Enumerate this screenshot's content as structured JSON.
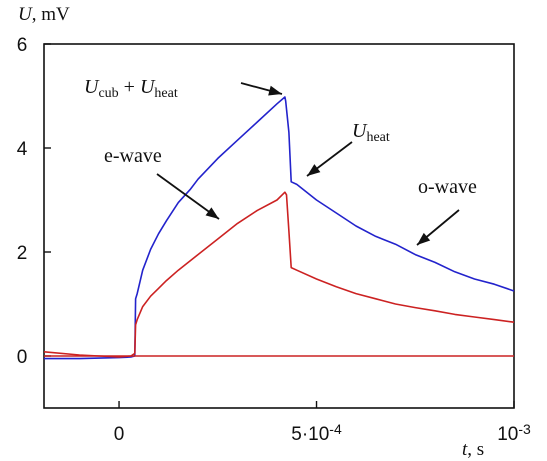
{
  "chart_data": {
    "type": "line",
    "ylabel": {
      "var": "U",
      "unit": ", mV"
    },
    "xlabel": {
      "var": "t",
      "unit": ", s"
    },
    "xlim": [
      -0.00019,
      0.001
    ],
    "ylim": [
      -1.0,
      6.0
    ],
    "x_ticks": [
      {
        "value": 0,
        "label": "0"
      },
      {
        "value": 0.0005,
        "label": "5·10",
        "exp": "-4"
      },
      {
        "value": 0.001,
        "label": "10",
        "exp": "-3"
      }
    ],
    "y_ticks": [
      {
        "value": 0,
        "label": "0"
      },
      {
        "value": 2,
        "label": "2"
      },
      {
        "value": 4,
        "label": "4"
      },
      {
        "value": 6,
        "label": "6"
      }
    ],
    "grid": false,
    "colors": {
      "blue": "#2323cc",
      "red": "#cc2222",
      "axis": "#111111"
    },
    "series": [
      {
        "color": "#2323cc",
        "x": [
          -0.00019,
          -0.0001,
          0,
          3e-05,
          4e-05,
          4.2e-05,
          4.6e-05,
          6e-05,
          8e-05,
          0.0001,
          0.00012,
          0.00015,
          0.00018,
          0.0002,
          0.00025,
          0.0003,
          0.00035,
          0.0004,
          0.00042,
          0.000422,
          0.00043,
          0.000436,
          0.00045,
          0.0005,
          0.00055,
          0.0006,
          0.00065,
          0.0007,
          0.00075,
          0.0008,
          0.00085,
          0.0009,
          0.00095,
          0.001
        ],
        "y": [
          -0.05,
          -0.05,
          -0.03,
          -0.02,
          0.0,
          1.1,
          1.2,
          1.65,
          2.05,
          2.35,
          2.6,
          2.95,
          3.2,
          3.4,
          3.8,
          4.15,
          4.5,
          4.85,
          4.98,
          4.9,
          4.3,
          3.35,
          3.3,
          3.0,
          2.75,
          2.5,
          2.3,
          2.15,
          1.95,
          1.8,
          1.62,
          1.48,
          1.38,
          1.25
        ]
      },
      {
        "color": "#cc2222",
        "x": [
          -0.00019,
          -0.0001,
          0,
          3e-05,
          4e-05,
          4.2e-05,
          4.6e-05,
          6e-05,
          8e-05,
          0.0001,
          0.00012,
          0.00015,
          0.0002,
          0.00025,
          0.0003,
          0.00035,
          0.0004,
          0.00042,
          0.000424,
          0.00043,
          0.000436,
          0.00045,
          0.0005,
          0.00055,
          0.0006,
          0.00065,
          0.0007,
          0.00075,
          0.0008,
          0.00085,
          0.0009,
          0.00095,
          0.001
        ],
        "y": [
          0.08,
          0.02,
          -0.02,
          0.0,
          0.05,
          0.6,
          0.7,
          0.95,
          1.15,
          1.3,
          1.45,
          1.65,
          1.95,
          2.25,
          2.55,
          2.8,
          3.0,
          3.15,
          3.1,
          2.4,
          1.7,
          1.65,
          1.48,
          1.33,
          1.2,
          1.1,
          1.0,
          0.93,
          0.87,
          0.8,
          0.75,
          0.7,
          0.65
        ]
      },
      {
        "color": "#cc2222",
        "x": [
          -0.00019,
          0.001
        ],
        "y": [
          0.0,
          0.0
        ]
      }
    ],
    "annotations": [
      {
        "parts": [
          [
            "U",
            "i"
          ],
          [
            "cub",
            "sub"
          ],
          [
            " + ",
            ""
          ],
          [
            "U",
            "i"
          ],
          [
            "heat",
            "sub"
          ]
        ],
        "tip": [
          0.000415,
          5.0
        ]
      },
      {
        "parts": [
          [
            "U",
            "i"
          ],
          [
            "heat",
            "sub"
          ]
        ],
        "tip": [
          0.000425,
          3.45
        ]
      },
      {
        "parts": [
          [
            "e-wave",
            ""
          ]
        ],
        "tip": [
          0.000255,
          2.65
        ]
      },
      {
        "parts": [
          [
            "o-wave",
            ""
          ]
        ],
        "tip": [
          0.000735,
          2.05
        ]
      }
    ]
  }
}
